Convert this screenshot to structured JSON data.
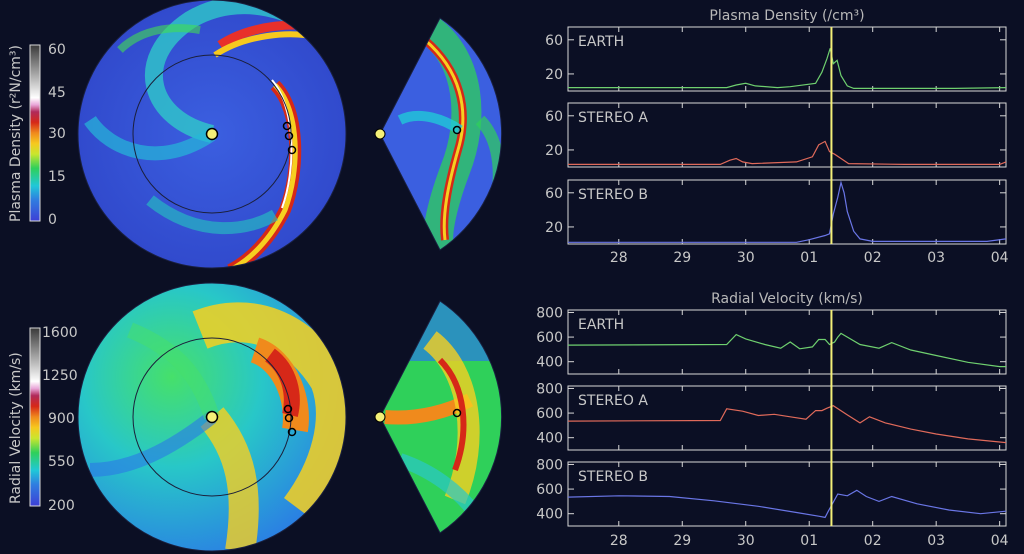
{
  "colors": {
    "background": "#0b0f24",
    "earth": "#6fd06f",
    "stereo_a": "#e06a5a",
    "stereo_b": "#6a76e6",
    "marker": "#f4f078"
  },
  "colorbars": [
    {
      "label": "Plasma Density (r²N/cm³)",
      "ticks": [
        "60",
        "45",
        "30",
        "15",
        "0"
      ]
    },
    {
      "label": "Radial Velocity (km/s)",
      "ticks": [
        "1600",
        "1250",
        "900",
        "550",
        "200"
      ]
    }
  ],
  "chart_data": [
    {
      "type": "line",
      "title": "Plasma Density (/cm³)",
      "x_ticks": [
        "28",
        "29",
        "30",
        "01",
        "02",
        "03",
        "04"
      ],
      "x_range": [
        27.2,
        34.1
      ],
      "x_note": "x in days; 28–30 are days of first month, 01–04 of next (31 = 01)",
      "marker_x": 31.35,
      "panels": [
        {
          "name": "EARTH",
          "ylim": [
            0,
            75
          ],
          "y_ticks": [
            "60",
            "20"
          ],
          "points": [
            [
              27.2,
              4
            ],
            [
              29.7,
              4
            ],
            [
              29.85,
              7
            ],
            [
              30.0,
              9
            ],
            [
              30.15,
              6
            ],
            [
              30.5,
              4
            ],
            [
              30.7,
              5
            ],
            [
              31.1,
              9
            ],
            [
              31.2,
              22
            ],
            [
              31.28,
              38
            ],
            [
              31.33,
              50
            ],
            [
              31.38,
              32
            ],
            [
              31.44,
              36
            ],
            [
              31.5,
              18
            ],
            [
              31.6,
              6
            ],
            [
              31.7,
              3
            ],
            [
              33.3,
              3
            ],
            [
              34.1,
              4
            ]
          ]
        },
        {
          "name": "STEREO A",
          "ylim": [
            0,
            75
          ],
          "y_ticks": [
            "60",
            "20"
          ],
          "points": [
            [
              27.2,
              3
            ],
            [
              29.6,
              3
            ],
            [
              29.75,
              8
            ],
            [
              29.85,
              10
            ],
            [
              29.95,
              6
            ],
            [
              30.1,
              4
            ],
            [
              30.8,
              6
            ],
            [
              31.05,
              12
            ],
            [
              31.15,
              26
            ],
            [
              31.25,
              30
            ],
            [
              31.32,
              18
            ],
            [
              31.4,
              15
            ],
            [
              31.5,
              10
            ],
            [
              31.62,
              4
            ],
            [
              32.5,
              3
            ],
            [
              34.0,
              3
            ],
            [
              34.1,
              6
            ]
          ]
        },
        {
          "name": "STEREO B",
          "ylim": [
            0,
            75
          ],
          "y_ticks": [
            "60",
            "20"
          ],
          "points": [
            [
              27.2,
              2
            ],
            [
              30.8,
              2
            ],
            [
              31.0,
              5
            ],
            [
              31.25,
              10
            ],
            [
              31.32,
              12
            ],
            [
              31.38,
              35
            ],
            [
              31.45,
              55
            ],
            [
              31.5,
              72
            ],
            [
              31.55,
              60
            ],
            [
              31.6,
              38
            ],
            [
              31.7,
              15
            ],
            [
              31.8,
              6
            ],
            [
              32.0,
              3
            ],
            [
              33.8,
              3
            ],
            [
              34.1,
              6
            ]
          ]
        }
      ]
    },
    {
      "type": "line",
      "title": "Radial Velocity (km/s)",
      "x_ticks": [
        "28",
        "29",
        "30",
        "01",
        "02",
        "03",
        "04"
      ],
      "x_range": [
        27.2,
        34.1
      ],
      "marker_x": 31.35,
      "panels": [
        {
          "name": "EARTH",
          "ylim": [
            300,
            820
          ],
          "y_ticks": [
            "800",
            "600",
            "400"
          ],
          "points": [
            [
              27.2,
              535
            ],
            [
              29.7,
              540
            ],
            [
              29.85,
              620
            ],
            [
              30.0,
              585
            ],
            [
              30.3,
              540
            ],
            [
              30.55,
              510
            ],
            [
              30.7,
              560
            ],
            [
              30.85,
              505
            ],
            [
              31.05,
              520
            ],
            [
              31.15,
              580
            ],
            [
              31.25,
              580
            ],
            [
              31.32,
              540
            ],
            [
              31.4,
              560
            ],
            [
              31.45,
              600
            ],
            [
              31.5,
              630
            ],
            [
              31.8,
              540
            ],
            [
              32.1,
              510
            ],
            [
              32.3,
              555
            ],
            [
              32.6,
              495
            ],
            [
              33.0,
              450
            ],
            [
              33.5,
              395
            ],
            [
              34.0,
              360
            ],
            [
              34.1,
              360
            ]
          ]
        },
        {
          "name": "STEREO A",
          "ylim": [
            300,
            820
          ],
          "y_ticks": [
            "800",
            "600",
            "400"
          ],
          "points": [
            [
              27.2,
              535
            ],
            [
              29.6,
              540
            ],
            [
              29.7,
              635
            ],
            [
              29.95,
              615
            ],
            [
              30.2,
              580
            ],
            [
              30.45,
              590
            ],
            [
              30.7,
              570
            ],
            [
              30.95,
              550
            ],
            [
              31.1,
              620
            ],
            [
              31.2,
              620
            ],
            [
              31.28,
              640
            ],
            [
              31.38,
              660
            ],
            [
              31.6,
              585
            ],
            [
              31.8,
              520
            ],
            [
              31.95,
              570
            ],
            [
              32.2,
              520
            ],
            [
              32.6,
              470
            ],
            [
              33.0,
              430
            ],
            [
              33.5,
              390
            ],
            [
              34.1,
              360
            ]
          ]
        },
        {
          "name": "STEREO B",
          "ylim": [
            300,
            820
          ],
          "y_ticks": [
            "800",
            "600",
            "400"
          ],
          "points": [
            [
              27.2,
              535
            ],
            [
              28.0,
              545
            ],
            [
              28.8,
              540
            ],
            [
              29.5,
              505
            ],
            [
              30.2,
              460
            ],
            [
              30.8,
              410
            ],
            [
              31.15,
              380
            ],
            [
              31.25,
              370
            ],
            [
              31.3,
              420
            ],
            [
              31.45,
              560
            ],
            [
              31.6,
              545
            ],
            [
              31.75,
              590
            ],
            [
              31.9,
              540
            ],
            [
              32.1,
              500
            ],
            [
              32.3,
              540
            ],
            [
              32.7,
              480
            ],
            [
              33.2,
              430
            ],
            [
              33.7,
              400
            ],
            [
              34.1,
              420
            ]
          ]
        }
      ]
    }
  ]
}
